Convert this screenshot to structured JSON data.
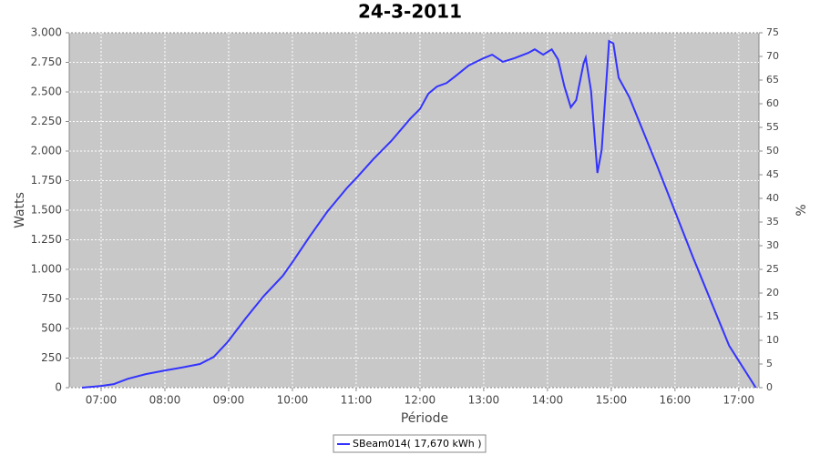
{
  "chart_data": {
    "type": "line",
    "title": "24-3-2011",
    "x_label": "Période",
    "y_label": "Watts",
    "y2_label": "%",
    "x": [
      "06:42",
      "07:00",
      "07:12",
      "07:25",
      "07:42",
      "08:00",
      "08:16",
      "08:33",
      "08:46",
      "08:59",
      "09:16",
      "09:33",
      "09:51",
      "10:00",
      "10:16",
      "10:33",
      "10:51",
      "11:00",
      "11:16",
      "11:33",
      "11:51",
      "12:00",
      "12:08",
      "12:16",
      "12:25",
      "12:33",
      "12:46",
      "13:00",
      "13:08",
      "13:18",
      "13:29",
      "13:42",
      "13:48",
      "13:56",
      "14:04",
      "14:10",
      "14:16",
      "14:22",
      "14:27",
      "14:34",
      "14:36",
      "14:41",
      "14:47",
      "14:51",
      "14:58",
      "15:02",
      "15:07",
      "15:17",
      "15:43",
      "16:17",
      "16:51",
      "17:16"
    ],
    "series": [
      {
        "name": "SBeam014( 17,670 kWh )",
        "color": "#3333ff",
        "values": [
          0,
          15,
          30,
          75,
          115,
          145,
          170,
          200,
          260,
          385,
          585,
          775,
          945,
          1060,
          1275,
          1490,
          1685,
          1770,
          1930,
          2085,
          2275,
          2355,
          2485,
          2545,
          2575,
          2630,
          2725,
          2785,
          2815,
          2755,
          2785,
          2830,
          2860,
          2815,
          2860,
          2775,
          2545,
          2370,
          2430,
          2740,
          2790,
          2510,
          1815,
          2010,
          2930,
          2910,
          2620,
          2455,
          1880,
          1100,
          355,
          0
        ]
      }
    ],
    "xlim": [
      "06:30",
      "17:19"
    ],
    "xticks": [
      "07:00",
      "08:00",
      "09:00",
      "10:00",
      "11:00",
      "12:00",
      "13:00",
      "14:00",
      "15:00",
      "16:00",
      "17:00"
    ],
    "ylim": [
      0,
      3000
    ],
    "yticks": [
      0,
      250,
      500,
      750,
      {
        "value": 1000,
        "label": "1.000"
      },
      {
        "value": 1250,
        "label": "1.250"
      },
      {
        "value": 1500,
        "label": "1.500"
      },
      {
        "value": 1750,
        "label": "1.750"
      },
      {
        "value": 2000,
        "label": "2.000"
      },
      {
        "value": 2250,
        "label": "2.250"
      },
      {
        "value": 2500,
        "label": "2.500"
      },
      {
        "value": 2750,
        "label": "2.750"
      },
      {
        "value": 3000,
        "label": "3.000"
      }
    ],
    "y2lim": [
      0,
      75
    ],
    "y2ticks": [
      0,
      5,
      10,
      15,
      20,
      25,
      30,
      35,
      40,
      45,
      50,
      55,
      60,
      65,
      70,
      75
    ],
    "grid": true
  }
}
